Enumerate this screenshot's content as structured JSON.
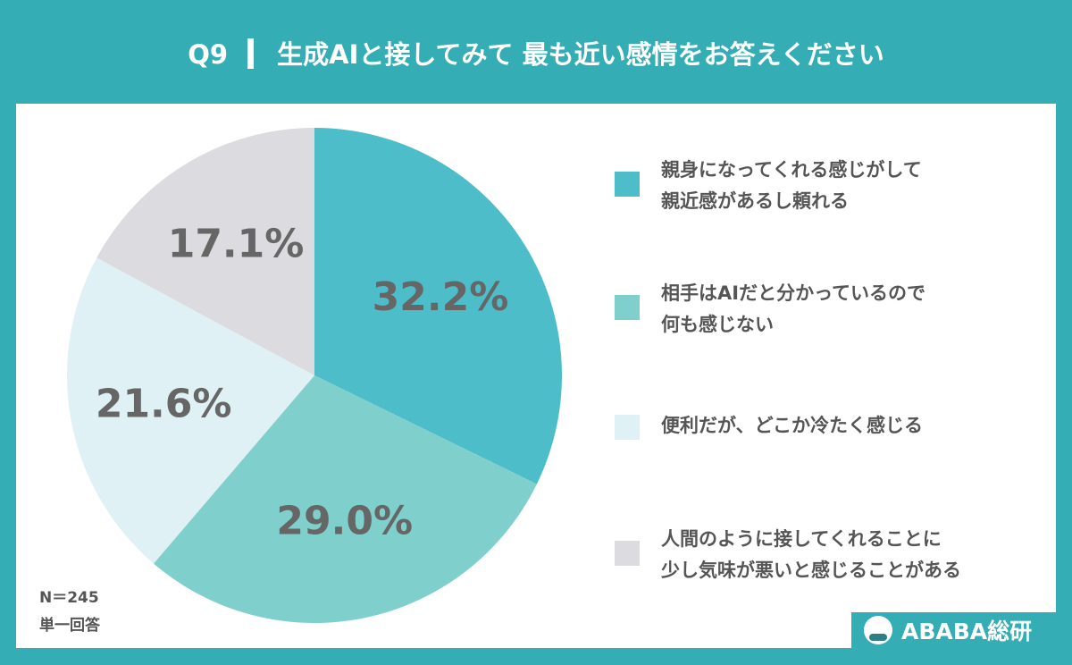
{
  "header": {
    "question": "Q9",
    "title": "生成AIと接してみて 最も近い感情をお答えください"
  },
  "chart_data": {
    "type": "pie",
    "start": "top",
    "direction": "clockwise",
    "categories": [
      "親身になってくれる感じがして\n親近感があるし頼れる",
      "相手はAIだと分かっているので\n何も感じない",
      "便利だが、どこか冷たく感じる",
      "人間のように接してくれることに\n少し気味が悪いと感じることがある"
    ],
    "values": [
      32.2,
      29.0,
      21.6,
      17.1
    ],
    "labels": [
      "32.2%",
      "29.0%",
      "21.6%",
      "17.1%"
    ],
    "colors": [
      "#4dbdca",
      "#7fcfcc",
      "#dff1f4",
      "#dcdbe0"
    ],
    "legend": "right"
  },
  "footnote": {
    "n": "N＝245",
    "type": "単一回答"
  },
  "logo": {
    "text": "ABABA総研"
  }
}
